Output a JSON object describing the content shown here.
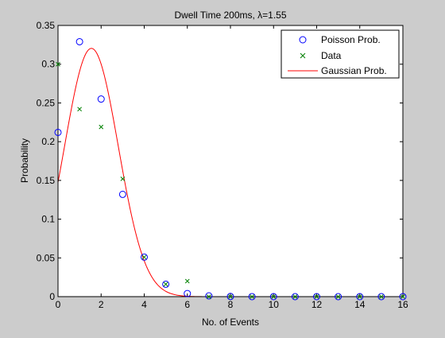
{
  "chart_data": {
    "type": "scatter",
    "title": "Dwell Time 200ms, λ=1.55",
    "xlabel": "No. of Events",
    "ylabel": "Probability",
    "xlim": [
      0,
      16
    ],
    "ylim": [
      0,
      0.35
    ],
    "xticks": [
      0,
      2,
      4,
      6,
      8,
      10,
      12,
      14,
      16
    ],
    "yticks": [
      0,
      0.05,
      0.1,
      0.15,
      0.2,
      0.25,
      0.3,
      0.35
    ],
    "ytick_labels": [
      "0",
      "0.05",
      "0.1",
      "0.15",
      "0.2",
      "0.25",
      "0.3",
      "0.35"
    ],
    "grid": false,
    "legend_position": "top-right",
    "series": [
      {
        "name": "Poisson Prob.",
        "marker": "circle",
        "color": "#0000ff",
        "x": [
          0,
          1,
          2,
          3,
          4,
          5,
          6,
          7,
          8,
          9,
          10,
          11,
          12,
          13,
          14,
          15,
          16
        ],
        "y": [
          0.212,
          0.329,
          0.255,
          0.132,
          0.051,
          0.016,
          0.004,
          0.001,
          0.0002,
          3e-05,
          0,
          0,
          0,
          0,
          0,
          0,
          0
        ]
      },
      {
        "name": "Data",
        "marker": "x",
        "color": "#008000",
        "x": [
          0,
          1,
          2,
          3,
          4,
          5,
          6,
          7,
          8,
          9,
          10,
          11,
          12,
          13,
          14,
          15,
          16
        ],
        "y": [
          0.3,
          0.242,
          0.219,
          0.152,
          0.051,
          0.016,
          0.02,
          0,
          0,
          0,
          0,
          0,
          0,
          0,
          0,
          0,
          0
        ]
      },
      {
        "name": "Gaussian Prob.",
        "marker": "line",
        "color": "#ff0000",
        "curve": "gaussian",
        "mean": 1.55,
        "variance": 1.55,
        "x_range": [
          0,
          16
        ]
      }
    ]
  }
}
